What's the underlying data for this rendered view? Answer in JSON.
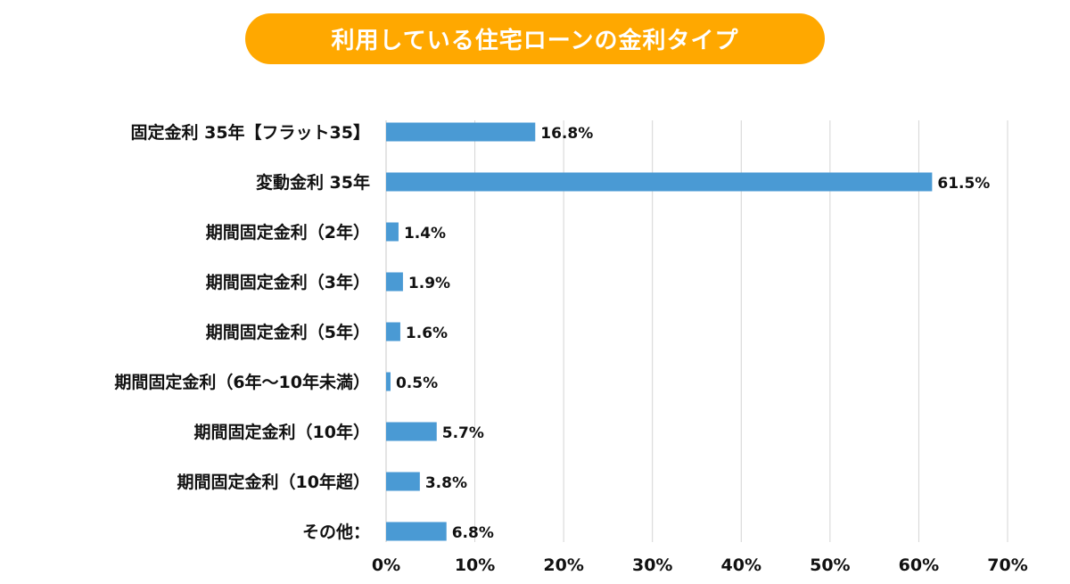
{
  "chart_data": {
    "type": "bar",
    "orientation": "horizontal",
    "title": "利用している住宅ローンの金利タイプ",
    "categories": [
      "固定金利 35年【フラット35】",
      "変動金利 35年",
      "期間固定金利（2年）",
      "期間固定金利（3年）",
      "期間固定金利（5年）",
      "期間固定金利（6年〜10年未満）",
      "期間固定金利（10年）",
      "期間固定金利（10年超）",
      "その他："
    ],
    "values": [
      16.8,
      61.5,
      1.4,
      1.9,
      1.6,
      0.5,
      5.7,
      3.8,
      6.8
    ],
    "value_labels": [
      "16.8%",
      "61.5%",
      "1.4%",
      "1.9%",
      "1.6%",
      "0.5%",
      "5.7%",
      "3.8%",
      "6.8%"
    ],
    "xlim": [
      0,
      70
    ],
    "xticks": [
      0,
      10,
      20,
      30,
      40,
      50,
      60,
      70
    ],
    "xtick_labels": [
      "0%",
      "10%",
      "20%",
      "30%",
      "40%",
      "50%",
      "60%",
      "70%"
    ],
    "grid": true,
    "bar_color": "#4a9ad4",
    "title_color": "#ffa800"
  }
}
